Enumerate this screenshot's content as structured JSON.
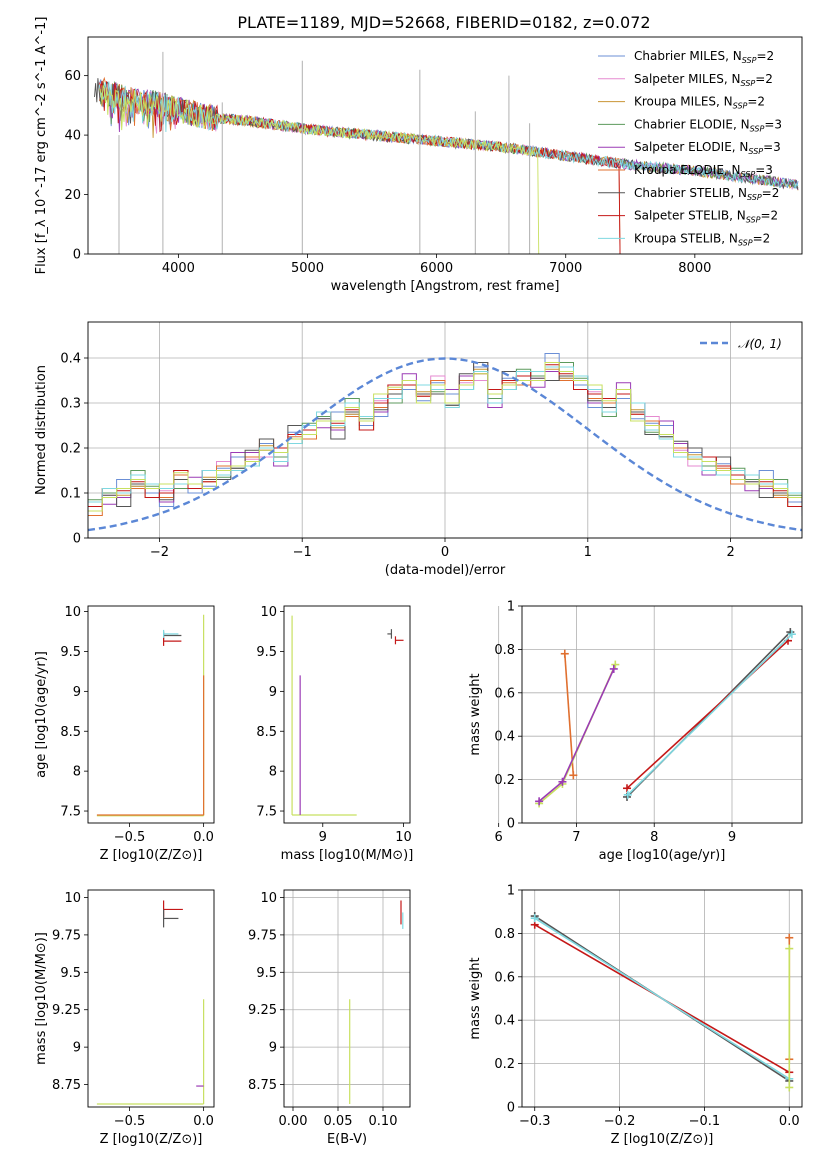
{
  "figure_title": "PLATE=1189, MJD=52668, FIBERID=0182, z=0.072",
  "colors": {
    "Chabrier MILES": "#6b8fd6",
    "Salpeter MILES": "#e58ad0",
    "Kroupa MILES": "#c99535",
    "Chabrier ELODIE": "#5c9a5c",
    "Salpeter ELODIE": "#9b3bb5",
    "Kroupa ELODIE": "#e07030",
    "Chabrier STELIB": "#555555",
    "Salpeter STELIB": "#c41818",
    "Kroupa STELIB": "#7fd8e0",
    "extra": "#c8e060",
    "gaussian": "#5b87d6",
    "grid": "#b0b0b0"
  },
  "legend": {
    "models": [
      {
        "name": "Chabrier",
        "lib": "MILES",
        "n": "2"
      },
      {
        "name": "Salpeter",
        "lib": "MILES",
        "n": "2"
      },
      {
        "name": "Kroupa",
        "lib": "MILES",
        "n": "2"
      },
      {
        "name": "Chabrier",
        "lib": "ELODIE",
        "n": "3"
      },
      {
        "name": "Salpeter",
        "lib": "ELODIE",
        "n": "3"
      },
      {
        "name": "Kroupa",
        "lib": "ELODIE",
        "n": "3"
      },
      {
        "name": "Chabrier",
        "lib": "STELIB",
        "n": "2"
      },
      {
        "name": "Salpeter",
        "lib": "STELIB",
        "n": "2"
      },
      {
        "name": "Kroupa",
        "lib": "STELIB",
        "n": "2"
      }
    ],
    "gaussian_label": "𝒩(0, 1)"
  },
  "chart_data": [
    {
      "id": "spectrum",
      "type": "line",
      "xlabel": "wavelength [Angstrom, rest frame]",
      "ylabel": "Flux [f_λ 10^-17 erg cm^-2 s^-1 A^-1]",
      "xlim": [
        3300,
        8830
      ],
      "ylim": [
        0,
        73
      ],
      "xticks": [
        4000,
        5000,
        6000,
        7000,
        8000
      ],
      "yticks": [
        0,
        20,
        40,
        60
      ],
      "grid": false,
      "legend_position": "top-right",
      "continuum_points": [
        [
          3350,
          56
        ],
        [
          3600,
          52
        ],
        [
          3900,
          50
        ],
        [
          4200,
          46
        ],
        [
          4500,
          45
        ],
        [
          5000,
          42
        ],
        [
          5500,
          40
        ],
        [
          6000,
          38
        ],
        [
          6500,
          36
        ],
        [
          7000,
          33
        ],
        [
          7500,
          30
        ],
        [
          8000,
          28
        ],
        [
          8500,
          25
        ],
        [
          8830,
          23
        ]
      ],
      "emission_lines": [
        [
          3540,
          40
        ],
        [
          3880,
          68
        ],
        [
          4340,
          51
        ],
        [
          4960,
          65
        ],
        [
          5870,
          62
        ],
        [
          6300,
          48
        ],
        [
          6560,
          60
        ],
        [
          6720,
          44
        ]
      ],
      "model_cutoffs": {
        "Kroupa ELODIE": 7420,
        "Salpeter STELIB": 7420,
        "extra": 6790
      }
    },
    {
      "id": "residual_hist",
      "type": "histogram",
      "xlabel": "(data-model)/error",
      "ylabel": "Normed distribution",
      "xlim": [
        -2.5,
        2.5
      ],
      "ylim": [
        0,
        0.48
      ],
      "xticks": [
        -2,
        -1,
        0,
        1,
        2
      ],
      "yticks": [
        0.0,
        0.1,
        0.2,
        0.3,
        0.4
      ],
      "grid": true,
      "bin_width": 0.1,
      "bin_start": -2.5,
      "base_heights": [
        0.07,
        0.09,
        0.1,
        0.12,
        0.11,
        0.1,
        0.14,
        0.12,
        0.13,
        0.15,
        0.16,
        0.18,
        0.2,
        0.19,
        0.22,
        0.24,
        0.26,
        0.25,
        0.28,
        0.26,
        0.3,
        0.33,
        0.35,
        0.32,
        0.34,
        0.3,
        0.35,
        0.37,
        0.32,
        0.34,
        0.36,
        0.35,
        0.38,
        0.36,
        0.35,
        0.32,
        0.3,
        0.33,
        0.28,
        0.25,
        0.23,
        0.2,
        0.18,
        0.17,
        0.15,
        0.14,
        0.12,
        0.12,
        0.1,
        0.09,
        0.08,
        0.08,
        0.07,
        0.06,
        0.05,
        0.05,
        0.04,
        0.04,
        0.03,
        0.03
      ],
      "series_offsets": [
        [
          0.01,
          -0.02,
          0.03
        ],
        [
          0.02,
          0.01,
          -0.01
        ],
        [
          -0.01,
          0.02,
          0.01
        ],
        [
          0.03,
          -0.01,
          0.02
        ],
        [
          0.0,
          0.03,
          -0.02
        ],
        [
          0.02,
          0.0,
          0.01
        ],
        [
          -0.02,
          0.01,
          0.03
        ],
        [
          0.01,
          0.02,
          -0.01
        ],
        [
          0.02,
          -0.02,
          0.02
        ],
        [
          -0.01,
          0.0,
          0.02
        ]
      ],
      "gaussian": {
        "mean": 0,
        "sigma": 1
      }
    },
    {
      "id": "Z_vs_age",
      "type": "errorbar",
      "xlabel": "Z [log10(Z/Z⊙)]",
      "ylabel": "age [log10(age/yr)]",
      "xlim": [
        -0.78,
        0.07
      ],
      "ylim": [
        7.35,
        10.07
      ],
      "xticks": [
        -0.5,
        0.0
      ],
      "xticklabels": [
        "−0.5",
        "0.0"
      ],
      "yticks": [
        7.5,
        8.0,
        8.5,
        9.0,
        9.5,
        10.0
      ],
      "grid": false,
      "points": [
        {
          "series": "Chabrier STELIB",
          "x": -0.27,
          "y": 9.7,
          "xerr": [
            0.0,
            0.12
          ],
          "yerr": [
            0.05,
            0.05
          ]
        },
        {
          "series": "Kroupa STELIB",
          "x": -0.27,
          "y": 9.72,
          "xerr": [
            0.0,
            0.1
          ],
          "yerr": [
            0.05,
            0.05
          ]
        },
        {
          "series": "Salpeter STELIB",
          "x": -0.27,
          "y": 9.63,
          "xerr": [
            0.0,
            0.12
          ],
          "yerr": [
            0.06,
            0.04
          ]
        },
        {
          "series": "extra",
          "x": 0.0,
          "y": 7.44,
          "xerr": [
            0.72,
            0.0
          ],
          "yerr": [
            0.0,
            2.52
          ]
        },
        {
          "series": "Kroupa ELODIE",
          "x": 0.0,
          "y": 7.45,
          "xerr": [
            0.72,
            0.0
          ],
          "yerr": [
            0.0,
            1.75
          ]
        }
      ]
    },
    {
      "id": "mass_vs_age",
      "type": "errorbar",
      "xlabel": "mass [log10(M/M⊙)]",
      "ylabel": "",
      "xlim": [
        8.52,
        10.08
      ],
      "ylim": [
        7.35,
        10.07
      ],
      "xticks": [
        9,
        10
      ],
      "yticks": [
        7.5,
        8.0,
        8.5,
        9.0,
        9.5,
        10.0
      ],
      "grid": false,
      "points": [
        {
          "series": "Chabrier STELIB",
          "x": 9.85,
          "y": 9.72,
          "xerr": [
            0.05,
            0.0
          ],
          "yerr": [
            0.06,
            0.06
          ]
        },
        {
          "series": "Salpeter STELIB",
          "x": 9.9,
          "y": 9.64,
          "xerr": [
            0.0,
            0.1
          ],
          "yerr": [
            0.05,
            0.05
          ]
        },
        {
          "series": "extra",
          "x": 8.62,
          "y": 7.45,
          "xerr": [
            0.0,
            0.8
          ],
          "yerr": [
            0.0,
            2.5
          ]
        },
        {
          "series": "Salpeter ELODIE",
          "x": 8.72,
          "y": 7.45,
          "xerr": [
            0.0,
            0.0
          ],
          "yerr": [
            0.0,
            1.75
          ]
        }
      ]
    },
    {
      "id": "age_vs_weight",
      "type": "line",
      "xlabel": "age [log10(age/yr)]",
      "ylabel": "mass weight",
      "xlim": [
        6.3,
        9.9
      ],
      "ylim": [
        0,
        1
      ],
      "xticks": [
        6,
        7,
        8,
        9
      ],
      "yticks": [
        0.0,
        0.2,
        0.4,
        0.6,
        0.8,
        1.0
      ],
      "grid": true,
      "lines": [
        {
          "series": "Kroupa ELODIE",
          "points": [
            [
              6.85,
              0.78
            ],
            [
              6.96,
              0.22
            ]
          ]
        },
        {
          "series": "extra",
          "points": [
            [
              6.52,
              0.09
            ],
            [
              6.82,
              0.18
            ],
            [
              7.5,
              0.73
            ]
          ]
        },
        {
          "series": "Salpeter ELODIE",
          "points": [
            [
              6.52,
              0.1
            ],
            [
              6.82,
              0.19
            ],
            [
              7.48,
              0.71
            ]
          ]
        },
        {
          "series": "Chabrier STELIB",
          "points": [
            [
              7.65,
              0.12
            ],
            [
              9.75,
              0.88
            ]
          ]
        },
        {
          "series": "Salpeter STELIB",
          "points": [
            [
              7.65,
              0.16
            ],
            [
              9.72,
              0.84
            ]
          ]
        },
        {
          "series": "Kroupa STELIB",
          "points": [
            [
              7.66,
              0.13
            ],
            [
              9.77,
              0.87
            ]
          ]
        }
      ]
    },
    {
      "id": "Z_vs_mass",
      "type": "errorbar",
      "xlabel": "Z [log10(Z/Z⊙)]",
      "ylabel": "mass [log10(M/M⊙)]",
      "xlim": [
        -0.78,
        0.07
      ],
      "ylim": [
        8.6,
        10.05
      ],
      "xticks": [
        -0.5,
        0.0
      ],
      "xticklabels": [
        "−0.5",
        "0.0"
      ],
      "yticks": [
        8.75,
        9.0,
        9.25,
        9.5,
        9.75,
        10.0
      ],
      "grid": false,
      "points": [
        {
          "series": "Salpeter STELIB",
          "x": -0.27,
          "y": 9.92,
          "xerr": [
            0.0,
            0.13
          ],
          "yerr": [
            0.05,
            0.06
          ]
        },
        {
          "series": "Chabrier STELIB",
          "x": -0.27,
          "y": 9.86,
          "xerr": [
            0.0,
            0.1
          ],
          "yerr": [
            0.06,
            0.06
          ]
        },
        {
          "series": "extra",
          "x": 0.0,
          "y": 8.62,
          "xerr": [
            0.72,
            0.0
          ],
          "yerr": [
            0.0,
            0.7
          ]
        },
        {
          "series": "Salpeter ELODIE",
          "x": 0.0,
          "y": 8.74,
          "xerr": [
            0.05,
            0.0
          ],
          "yerr": [
            0.0,
            0.0
          ]
        }
      ]
    },
    {
      "id": "ebv_vs_mass",
      "type": "errorbar",
      "xlabel": "E(B-V)",
      "ylabel": "",
      "xlim": [
        -0.01,
        0.13
      ],
      "ylim": [
        8.6,
        10.05
      ],
      "xticks": [
        0.0,
        0.05,
        0.1
      ],
      "xticklabels": [
        "0.00",
        "0.05",
        "0.10"
      ],
      "yticks": [
        8.75,
        9.0,
        9.25,
        9.5,
        9.75,
        10.0
      ],
      "grid": true,
      "points": [
        {
          "series": "Salpeter STELIB",
          "x": 0.12,
          "y": 9.92,
          "xerr": [
            0,
            0
          ],
          "yerr": [
            0.1,
            0.06
          ]
        },
        {
          "series": "Kroupa STELIB",
          "x": 0.122,
          "y": 9.85,
          "xerr": [
            0,
            0
          ],
          "yerr": [
            0.06,
            0.05
          ]
        },
        {
          "series": "extra",
          "x": 0.063,
          "y": 8.62,
          "xerr": [
            0,
            0
          ],
          "yerr": [
            0.0,
            0.7
          ]
        }
      ]
    },
    {
      "id": "Z_vs_weight",
      "type": "line",
      "xlabel": "Z [log10(Z/Z⊙)]",
      "ylabel": "mass weight",
      "xlim": [
        -0.315,
        0.015
      ],
      "ylim": [
        0,
        1
      ],
      "xticks": [
        -0.3,
        -0.2,
        -0.1,
        0.0
      ],
      "xticklabels": [
        "−0.3",
        "−0.2",
        "−0.1",
        "0.0"
      ],
      "yticks": [
        0.0,
        0.2,
        0.4,
        0.6,
        0.8,
        1.0
      ],
      "grid": true,
      "lines": [
        {
          "series": "Chabrier STELIB",
          "points": [
            [
              -0.3,
              0.88
            ],
            [
              0.0,
              0.12
            ]
          ]
        },
        {
          "series": "Salpeter STELIB",
          "points": [
            [
              -0.3,
              0.84
            ],
            [
              0.0,
              0.16
            ]
          ]
        },
        {
          "series": "Kroupa STELIB",
          "points": [
            [
              -0.3,
              0.87
            ],
            [
              0.0,
              0.13
            ]
          ]
        },
        {
          "series": "Kroupa ELODIE",
          "points": [
            [
              0.0,
              0.78
            ],
            [
              0.0,
              0.22
            ]
          ]
        },
        {
          "series": "extra",
          "points": [
            [
              0.0,
              0.73
            ],
            [
              0.0,
              0.09
            ]
          ]
        }
      ]
    }
  ]
}
